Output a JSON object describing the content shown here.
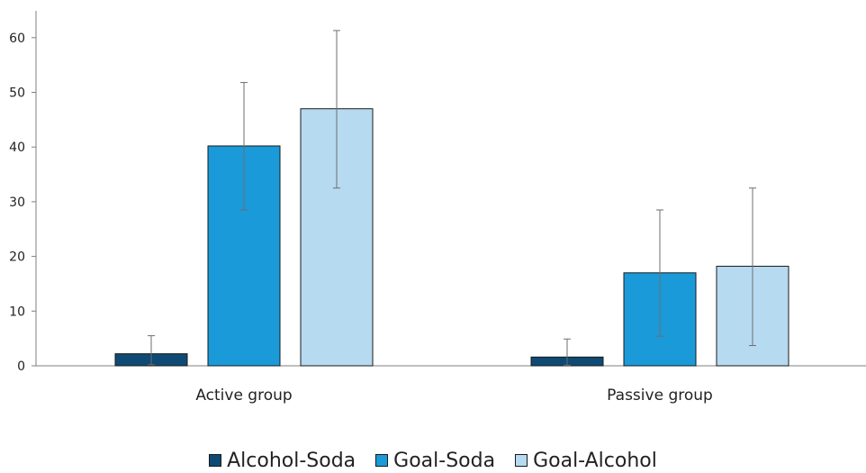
{
  "chart_data": {
    "type": "bar",
    "title": "",
    "xlabel": "",
    "ylabel": "",
    "categories": [
      "Active group",
      "Passive group"
    ],
    "ylim": [
      0,
      65
    ],
    "yticks": [
      0,
      10,
      20,
      30,
      40,
      50,
      60
    ],
    "grid": false,
    "error_bars": true,
    "legend_position": "bottom",
    "series": [
      {
        "name": "Alcohol-Soda",
        "color": "#0e4a73",
        "values": [
          2.2,
          1.6
        ],
        "error_low": [
          0.2,
          0.1
        ],
        "error_high": [
          5.5,
          4.9
        ]
      },
      {
        "name": "Goal-Soda",
        "color": "#1a9ad9",
        "values": [
          40.2,
          17.0
        ],
        "error_low": [
          28.5,
          5.4
        ],
        "error_high": [
          51.8,
          28.5
        ]
      },
      {
        "name": "Goal-Alcohol",
        "color": "#b6daf0",
        "values": [
          47.0,
          18.2
        ],
        "error_low": [
          32.5,
          3.7
        ],
        "error_high": [
          61.3,
          32.5
        ]
      }
    ]
  }
}
